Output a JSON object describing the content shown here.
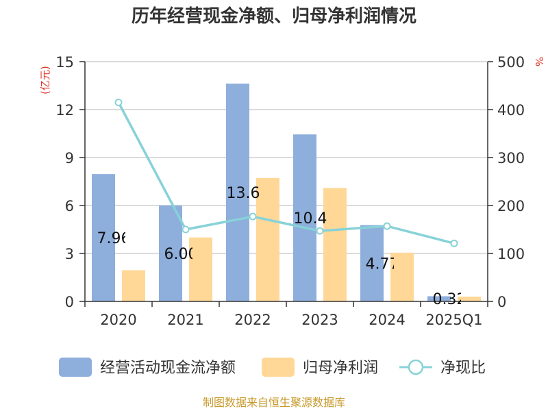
{
  "chart_data": {
    "type": "bar",
    "title": "历年经营现金净额、归母净利润情况",
    "categories": [
      "2020",
      "2021",
      "2022",
      "2023",
      "2024",
      "2025Q1"
    ],
    "series": [
      {
        "name": "经营活动现金流净额",
        "type": "bar",
        "axis": "left",
        "color": "#8eaedc",
        "values": [
          7.965,
          6.004,
          13.625,
          10.447,
          4.773,
          0.323
        ]
      },
      {
        "name": "归母净利润",
        "type": "bar",
        "axis": "left",
        "color": "#ffd898",
        "values": [
          1.95,
          4.0,
          7.72,
          7.1,
          3.05,
          0.3
        ]
      },
      {
        "name": "净现比",
        "type": "line",
        "axis": "right",
        "color": "#87d2d8",
        "values": [
          415,
          150,
          177,
          147,
          157,
          121
        ]
      }
    ],
    "data_labels": [
      "7.965",
      "6.004",
      "13.625",
      "10.447",
      "4.773",
      "0.323"
    ],
    "y_left": {
      "label": "(亿元)",
      "ticks": [
        "0",
        "3",
        "6",
        "9",
        "12",
        "15"
      ],
      "range": [
        0,
        15
      ]
    },
    "y_right": {
      "label": "%",
      "ticks": [
        "0",
        "100",
        "200",
        "300",
        "400",
        "500"
      ],
      "range": [
        0,
        500
      ]
    },
    "grid": true,
    "legend_position": "bottom",
    "source": "制图数据来自恒生聚源数据库"
  }
}
